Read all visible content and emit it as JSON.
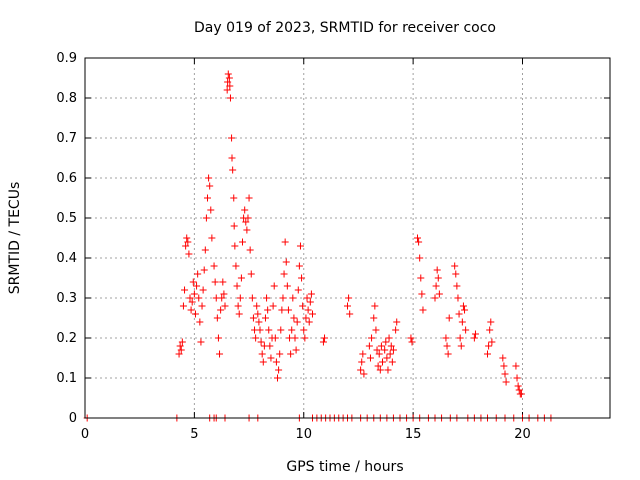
{
  "chart_data": {
    "type": "scatter",
    "title": "Day 019 of 2023, SRMTID for receiver coco",
    "xlabel": "GPS time / hours",
    "ylabel": "SRMTID / TECUs",
    "xlim": [
      0,
      24
    ],
    "ylim": [
      0,
      0.9
    ],
    "xticks": [
      0,
      5,
      10,
      15,
      20
    ],
    "yticks": [
      0,
      0.1,
      0.2,
      0.3,
      0.4,
      0.5,
      0.6,
      0.7,
      0.8,
      0.9
    ],
    "xtick_labels": [
      "0",
      "5",
      "10",
      "15",
      "20"
    ],
    "ytick_labels": [
      "0",
      "0.1",
      "0.2",
      "0.3",
      "0.4",
      "0.5",
      "0.6",
      "0.7",
      "0.8",
      "0.9"
    ],
    "grid": true,
    "marker": "+",
    "marker_color": "#ff0000",
    "series": [
      {
        "name": "SRMTID",
        "points": [
          [
            0.1,
            0
          ],
          [
            4.2,
            0
          ],
          [
            5.7,
            0
          ],
          [
            5.9,
            0
          ],
          [
            6.0,
            0
          ],
          [
            6.4,
            0
          ],
          [
            7.5,
            0
          ],
          [
            7.9,
            0
          ],
          [
            9.8,
            0
          ],
          [
            10.4,
            0
          ],
          [
            10.6,
            0
          ],
          [
            10.8,
            0
          ],
          [
            11.0,
            0
          ],
          [
            11.2,
            0
          ],
          [
            11.4,
            0
          ],
          [
            11.6,
            0
          ],
          [
            11.8,
            0
          ],
          [
            12.0,
            0
          ],
          [
            12.2,
            0
          ],
          [
            12.6,
            0
          ],
          [
            12.9,
            0
          ],
          [
            13.2,
            0
          ],
          [
            13.5,
            0
          ],
          [
            13.8,
            0
          ],
          [
            14.1,
            0
          ],
          [
            14.4,
            0
          ],
          [
            14.7,
            0
          ],
          [
            15.0,
            0
          ],
          [
            15.3,
            0
          ],
          [
            15.7,
            0
          ],
          [
            16.0,
            0
          ],
          [
            16.3,
            0
          ],
          [
            16.7,
            0
          ],
          [
            17.0,
            0
          ],
          [
            17.5,
            0
          ],
          [
            17.8,
            0
          ],
          [
            18.1,
            0
          ],
          [
            18.4,
            0
          ],
          [
            18.8,
            0
          ],
          [
            19.2,
            0
          ],
          [
            19.6,
            0
          ],
          [
            20.0,
            0
          ],
          [
            20.3,
            0
          ],
          [
            20.7,
            0
          ],
          [
            21.0,
            0
          ],
          [
            21.3,
            0
          ],
          [
            4.3,
            0.16
          ],
          [
            4.35,
            0.18
          ],
          [
            4.4,
            0.17
          ],
          [
            4.45,
            0.19
          ],
          [
            4.5,
            0.28
          ],
          [
            4.55,
            0.32
          ],
          [
            4.6,
            0.43
          ],
          [
            4.65,
            0.45
          ],
          [
            4.7,
            0.44
          ],
          [
            4.75,
            0.41
          ],
          [
            4.8,
            0.3
          ],
          [
            4.85,
            0.27
          ],
          [
            4.9,
            0.29
          ],
          [
            4.95,
            0.34
          ],
          [
            5.0,
            0.31
          ],
          [
            5.05,
            0.26
          ],
          [
            5.1,
            0.33
          ],
          [
            5.15,
            0.36
          ],
          [
            5.2,
            0.3
          ],
          [
            5.25,
            0.24
          ],
          [
            5.3,
            0.19
          ],
          [
            5.35,
            0.28
          ],
          [
            5.4,
            0.32
          ],
          [
            5.45,
            0.37
          ],
          [
            5.5,
            0.42
          ],
          [
            5.55,
            0.5
          ],
          [
            5.6,
            0.55
          ],
          [
            5.65,
            0.6
          ],
          [
            5.7,
            0.58
          ],
          [
            5.75,
            0.52
          ],
          [
            5.8,
            0.45
          ],
          [
            5.9,
            0.38
          ],
          [
            5.95,
            0.34
          ],
          [
            6.0,
            0.3
          ],
          [
            6.05,
            0.25
          ],
          [
            6.1,
            0.2
          ],
          [
            6.15,
            0.16
          ],
          [
            6.2,
            0.27
          ],
          [
            6.25,
            0.3
          ],
          [
            6.3,
            0.34
          ],
          [
            6.35,
            0.31
          ],
          [
            6.4,
            0.28
          ],
          [
            6.5,
            0.82
          ],
          [
            6.52,
            0.84
          ],
          [
            6.55,
            0.86
          ],
          [
            6.6,
            0.85
          ],
          [
            6.62,
            0.83
          ],
          [
            6.65,
            0.8
          ],
          [
            6.7,
            0.7
          ],
          [
            6.72,
            0.65
          ],
          [
            6.75,
            0.62
          ],
          [
            6.8,
            0.55
          ],
          [
            6.82,
            0.48
          ],
          [
            6.85,
            0.43
          ],
          [
            6.9,
            0.38
          ],
          [
            6.95,
            0.33
          ],
          [
            7.0,
            0.28
          ],
          [
            7.05,
            0.26
          ],
          [
            7.1,
            0.3
          ],
          [
            7.15,
            0.35
          ],
          [
            7.2,
            0.44
          ],
          [
            7.25,
            0.5
          ],
          [
            7.3,
            0.52
          ],
          [
            7.35,
            0.49
          ],
          [
            7.4,
            0.47
          ],
          [
            7.45,
            0.5
          ],
          [
            7.5,
            0.55
          ],
          [
            7.55,
            0.42
          ],
          [
            7.6,
            0.36
          ],
          [
            7.65,
            0.3
          ],
          [
            7.7,
            0.25
          ],
          [
            7.75,
            0.22
          ],
          [
            7.8,
            0.2
          ],
          [
            7.85,
            0.28
          ],
          [
            7.9,
            0.26
          ],
          [
            7.95,
            0.24
          ],
          [
            8.0,
            0.22
          ],
          [
            8.05,
            0.19
          ],
          [
            8.1,
            0.16
          ],
          [
            8.15,
            0.14
          ],
          [
            8.2,
            0.18
          ],
          [
            8.25,
            0.25
          ],
          [
            8.3,
            0.3
          ],
          [
            8.35,
            0.27
          ],
          [
            8.4,
            0.22
          ],
          [
            8.45,
            0.18
          ],
          [
            8.5,
            0.15
          ],
          [
            8.55,
            0.2
          ],
          [
            8.6,
            0.28
          ],
          [
            8.65,
            0.33
          ],
          [
            8.7,
            0.2
          ],
          [
            8.75,
            0.14
          ],
          [
            8.8,
            0.1
          ],
          [
            8.85,
            0.12
          ],
          [
            8.9,
            0.16
          ],
          [
            8.95,
            0.22
          ],
          [
            9.0,
            0.27
          ],
          [
            9.05,
            0.3
          ],
          [
            9.1,
            0.36
          ],
          [
            9.15,
            0.44
          ],
          [
            9.2,
            0.39
          ],
          [
            9.25,
            0.33
          ],
          [
            9.3,
            0.27
          ],
          [
            9.35,
            0.2
          ],
          [
            9.4,
            0.16
          ],
          [
            9.45,
            0.22
          ],
          [
            9.5,
            0.3
          ],
          [
            9.55,
            0.25
          ],
          [
            9.6,
            0.2
          ],
          [
            9.65,
            0.17
          ],
          [
            9.7,
            0.24
          ],
          [
            9.75,
            0.32
          ],
          [
            9.8,
            0.38
          ],
          [
            9.85,
            0.43
          ],
          [
            9.9,
            0.35
          ],
          [
            9.95,
            0.28
          ],
          [
            10.0,
            0.22
          ],
          [
            10.05,
            0.2
          ],
          [
            10.1,
            0.25
          ],
          [
            10.15,
            0.3
          ],
          [
            10.2,
            0.27
          ],
          [
            10.25,
            0.24
          ],
          [
            10.3,
            0.29
          ],
          [
            10.35,
            0.31
          ],
          [
            10.4,
            0.26
          ],
          [
            10.9,
            0.19
          ],
          [
            10.95,
            0.2
          ],
          [
            12.0,
            0.28
          ],
          [
            12.05,
            0.3
          ],
          [
            12.1,
            0.26
          ],
          [
            12.6,
            0.12
          ],
          [
            12.65,
            0.14
          ],
          [
            12.7,
            0.16
          ],
          [
            12.75,
            0.11
          ],
          [
            13.0,
            0.18
          ],
          [
            13.05,
            0.15
          ],
          [
            13.1,
            0.2
          ],
          [
            13.2,
            0.25
          ],
          [
            13.25,
            0.28
          ],
          [
            13.3,
            0.22
          ],
          [
            13.35,
            0.17
          ],
          [
            13.4,
            0.13
          ],
          [
            13.45,
            0.16
          ],
          [
            13.5,
            0.12
          ],
          [
            13.55,
            0.18
          ],
          [
            13.6,
            0.14
          ],
          [
            13.7,
            0.17
          ],
          [
            13.75,
            0.19
          ],
          [
            13.8,
            0.15
          ],
          [
            13.85,
            0.12
          ],
          [
            13.9,
            0.2
          ],
          [
            13.95,
            0.16
          ],
          [
            14.0,
            0.18
          ],
          [
            14.05,
            0.14
          ],
          [
            14.1,
            0.17
          ],
          [
            14.2,
            0.22
          ],
          [
            14.25,
            0.24
          ],
          [
            14.9,
            0.2
          ],
          [
            14.95,
            0.19
          ],
          [
            15.2,
            0.45
          ],
          [
            15.25,
            0.44
          ],
          [
            15.3,
            0.4
          ],
          [
            15.35,
            0.35
          ],
          [
            15.4,
            0.31
          ],
          [
            15.45,
            0.27
          ],
          [
            16.0,
            0.3
          ],
          [
            16.05,
            0.33
          ],
          [
            16.1,
            0.37
          ],
          [
            16.15,
            0.35
          ],
          [
            16.2,
            0.31
          ],
          [
            16.5,
            0.2
          ],
          [
            16.55,
            0.18
          ],
          [
            16.6,
            0.16
          ],
          [
            16.65,
            0.25
          ],
          [
            16.9,
            0.38
          ],
          [
            16.95,
            0.36
          ],
          [
            17.0,
            0.33
          ],
          [
            17.05,
            0.3
          ],
          [
            17.1,
            0.26
          ],
          [
            17.15,
            0.2
          ],
          [
            17.2,
            0.18
          ],
          [
            17.25,
            0.24
          ],
          [
            17.3,
            0.28
          ],
          [
            17.35,
            0.27
          ],
          [
            17.4,
            0.22
          ],
          [
            17.8,
            0.2
          ],
          [
            17.85,
            0.21
          ],
          [
            18.4,
            0.16
          ],
          [
            18.45,
            0.18
          ],
          [
            18.5,
            0.22
          ],
          [
            18.55,
            0.24
          ],
          [
            18.6,
            0.19
          ],
          [
            19.1,
            0.15
          ],
          [
            19.15,
            0.13
          ],
          [
            19.2,
            0.11
          ],
          [
            19.25,
            0.09
          ],
          [
            19.7,
            0.13
          ],
          [
            19.75,
            0.1
          ],
          [
            19.8,
            0.08
          ],
          [
            19.85,
            0.07
          ],
          [
            19.9,
            0.06
          ],
          [
            19.95,
            0.06
          ]
        ]
      }
    ]
  }
}
